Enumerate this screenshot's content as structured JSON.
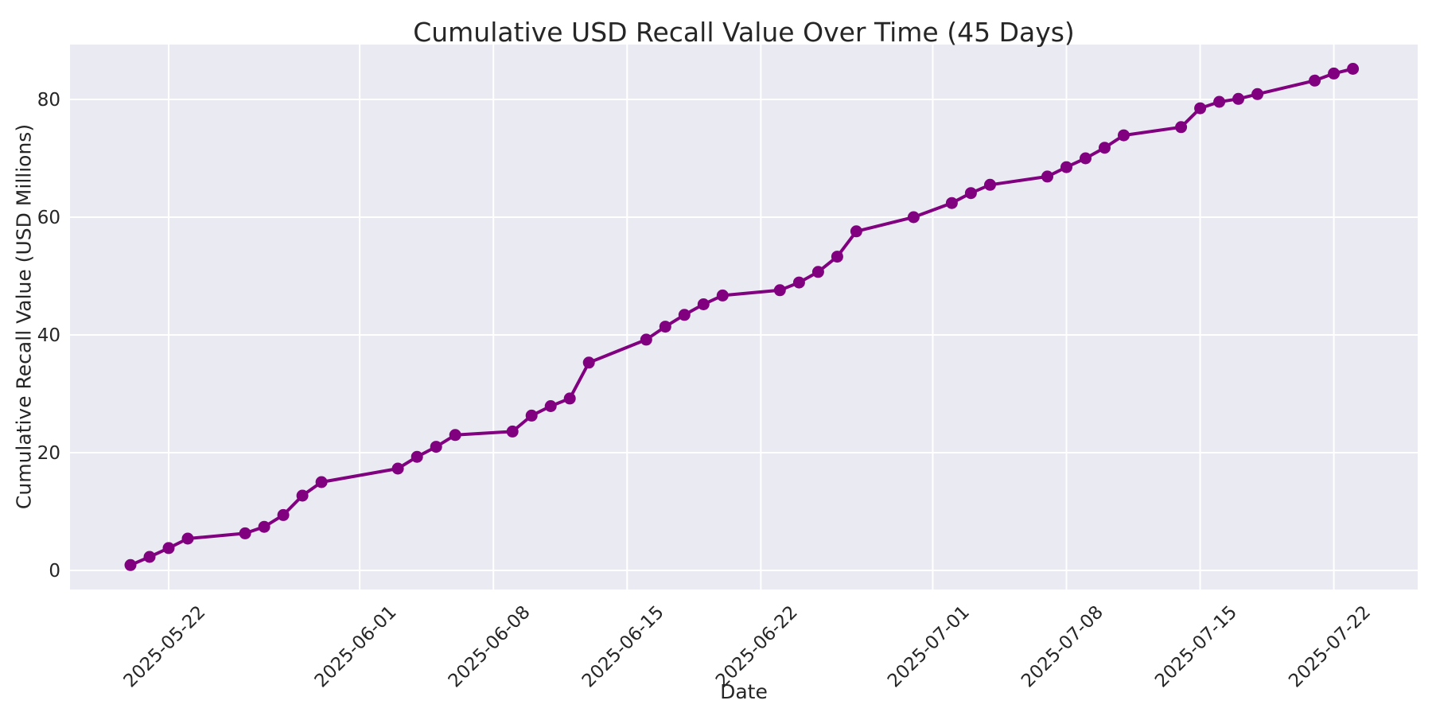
{
  "figure": {
    "title": "Cumulative USD Recall Value Over Time (45 Days)",
    "xlabel": "Date",
    "ylabel": "Cumulative Recall Value (USD Millions)"
  },
  "colors": {
    "line": "#800080",
    "marker": "#800080",
    "plot_background": "#EAEAF2",
    "grid": "#FFFFFF",
    "figure_background": "#FFFFFF",
    "text": "#262626"
  },
  "chart_data": {
    "type": "line",
    "title": "Cumulative USD Recall Value Over Time (45 Days)",
    "xlabel": "Date",
    "ylabel": "Cumulative Recall Value (USD Millions)",
    "grid": true,
    "legend": false,
    "marker": "o",
    "x_tick_labels": [
      "2025-05-22",
      "2025-06-01",
      "2025-06-08",
      "2025-06-15",
      "2025-06-22",
      "2025-07-01",
      "2025-07-08",
      "2025-07-15",
      "2025-07-22"
    ],
    "y_ticks": [
      0,
      20,
      40,
      60,
      80
    ],
    "ylim": [
      -3.2,
      89.3
    ],
    "x": [
      "2025-05-20",
      "2025-05-21",
      "2025-05-22",
      "2025-05-23",
      "2025-05-26",
      "2025-05-27",
      "2025-05-28",
      "2025-05-29",
      "2025-05-30",
      "2025-06-03",
      "2025-06-04",
      "2025-06-05",
      "2025-06-06",
      "2025-06-09",
      "2025-06-10",
      "2025-06-11",
      "2025-06-12",
      "2025-06-13",
      "2025-06-16",
      "2025-06-17",
      "2025-06-18",
      "2025-06-19",
      "2025-06-20",
      "2025-06-23",
      "2025-06-24",
      "2025-06-25",
      "2025-06-26",
      "2025-06-27",
      "2025-06-30",
      "2025-07-02",
      "2025-07-03",
      "2025-07-04",
      "2025-07-07",
      "2025-07-08",
      "2025-07-09",
      "2025-07-10",
      "2025-07-11",
      "2025-07-14",
      "2025-07-15",
      "2025-07-16",
      "2025-07-17",
      "2025-07-18",
      "2025-07-21",
      "2025-07-22",
      "2025-07-23"
    ],
    "values": [
      0.9,
      2.3,
      3.8,
      5.4,
      6.3,
      7.4,
      9.4,
      12.7,
      15.0,
      17.3,
      19.3,
      21.0,
      23.0,
      23.6,
      26.3,
      27.9,
      29.2,
      35.3,
      39.2,
      41.4,
      43.4,
      45.2,
      46.7,
      47.6,
      48.9,
      50.7,
      53.3,
      57.6,
      60.0,
      62.4,
      64.1,
      65.5,
      66.9,
      68.5,
      70.0,
      71.8,
      73.9,
      75.3,
      78.5,
      79.6,
      80.1,
      80.9,
      83.2,
      84.4,
      85.2
    ],
    "series": [
      {
        "name": "Cumulative Recall Value (USD Millions)"
      }
    ]
  }
}
